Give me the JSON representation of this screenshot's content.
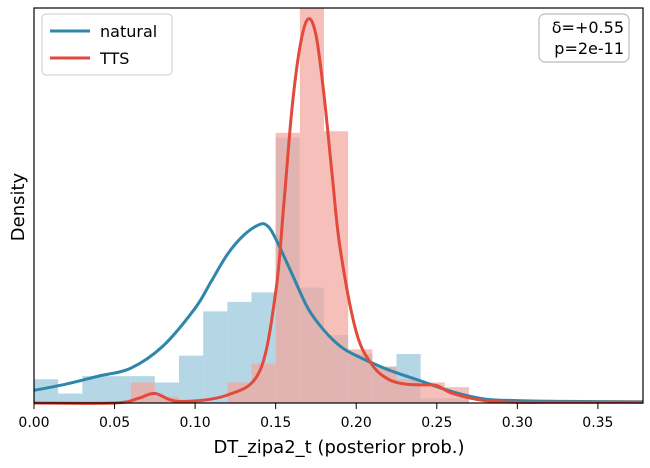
{
  "chart_data": {
    "type": "histogram",
    "title": "",
    "xlabel": "DT_zipa2_t (posterior prob.)",
    "ylabel": "Density",
    "xlim": [
      0.0,
      0.378
    ],
    "ylim": [
      0,
      25
    ],
    "x_ticks": [
      0.0,
      0.05,
      0.1,
      0.15,
      0.2,
      0.25,
      0.3,
      0.35
    ],
    "x_tick_labels": [
      "0.00",
      "0.05",
      "0.10",
      "0.15",
      "0.20",
      "0.25",
      "0.30",
      "0.35"
    ],
    "y_ticks_shown": false,
    "grid": false,
    "legend_position": "top-left",
    "bin_edges": [
      0.0,
      0.015,
      0.03,
      0.045,
      0.06,
      0.075,
      0.09,
      0.105,
      0.12,
      0.135,
      0.15,
      0.165,
      0.18,
      0.195,
      0.21,
      0.225,
      0.24,
      0.255,
      0.27
    ],
    "series": [
      {
        "name": "natural",
        "color": "#2e86ab",
        "hist_color": "#a8cfe0",
        "hist": [
          1.5,
          0.6,
          1.7,
          1.7,
          1.7,
          1.3,
          3.0,
          5.8,
          6.4,
          7.0,
          16.8,
          7.3,
          4.3,
          3.1,
          2.3,
          3.1,
          0.3,
          0.3
        ],
        "kde_x": [
          0.0,
          0.02,
          0.04,
          0.06,
          0.08,
          0.1,
          0.11,
          0.12,
          0.13,
          0.14,
          0.145,
          0.15,
          0.16,
          0.17,
          0.18,
          0.19,
          0.2,
          0.22,
          0.24,
          0.26,
          0.28,
          0.3,
          0.33,
          0.378
        ],
        "kde_y": [
          0.8,
          1.2,
          1.7,
          2.2,
          3.6,
          6.0,
          7.7,
          9.4,
          10.6,
          11.3,
          11.2,
          10.4,
          8.2,
          6.0,
          4.6,
          3.6,
          3.0,
          2.1,
          1.4,
          0.7,
          0.25,
          0.15,
          0.1,
          0.08
        ]
      },
      {
        "name": "TTS",
        "color": "#e24a3b",
        "hist_color": "#f2a69e",
        "hist": [
          0.0,
          0.0,
          0.0,
          0.0,
          1.3,
          0.4,
          0.0,
          0.0,
          1.3,
          2.5,
          17.1,
          25.0,
          17.2,
          3.4,
          2.3,
          1.5,
          1.3,
          1.0
        ],
        "kde_x": [
          0.0,
          0.05,
          0.065,
          0.075,
          0.09,
          0.12,
          0.14,
          0.15,
          0.155,
          0.16,
          0.165,
          0.17,
          0.175,
          0.18,
          0.185,
          0.19,
          0.2,
          0.21,
          0.22,
          0.23,
          0.24,
          0.25,
          0.26,
          0.28,
          0.3,
          0.33,
          0.378
        ],
        "kde_y": [
          0.0,
          0.0,
          0.3,
          0.6,
          0.1,
          0.5,
          2.0,
          7.0,
          12.5,
          18.5,
          22.5,
          24.3,
          23.3,
          19.5,
          14.5,
          9.8,
          4.5,
          2.4,
          1.5,
          1.2,
          1.15,
          1.1,
          0.6,
          0.15,
          0.05,
          0.05,
          0.05
        ]
      }
    ],
    "annotations": [
      "δ=+0.55",
      "p=2e-11"
    ]
  }
}
